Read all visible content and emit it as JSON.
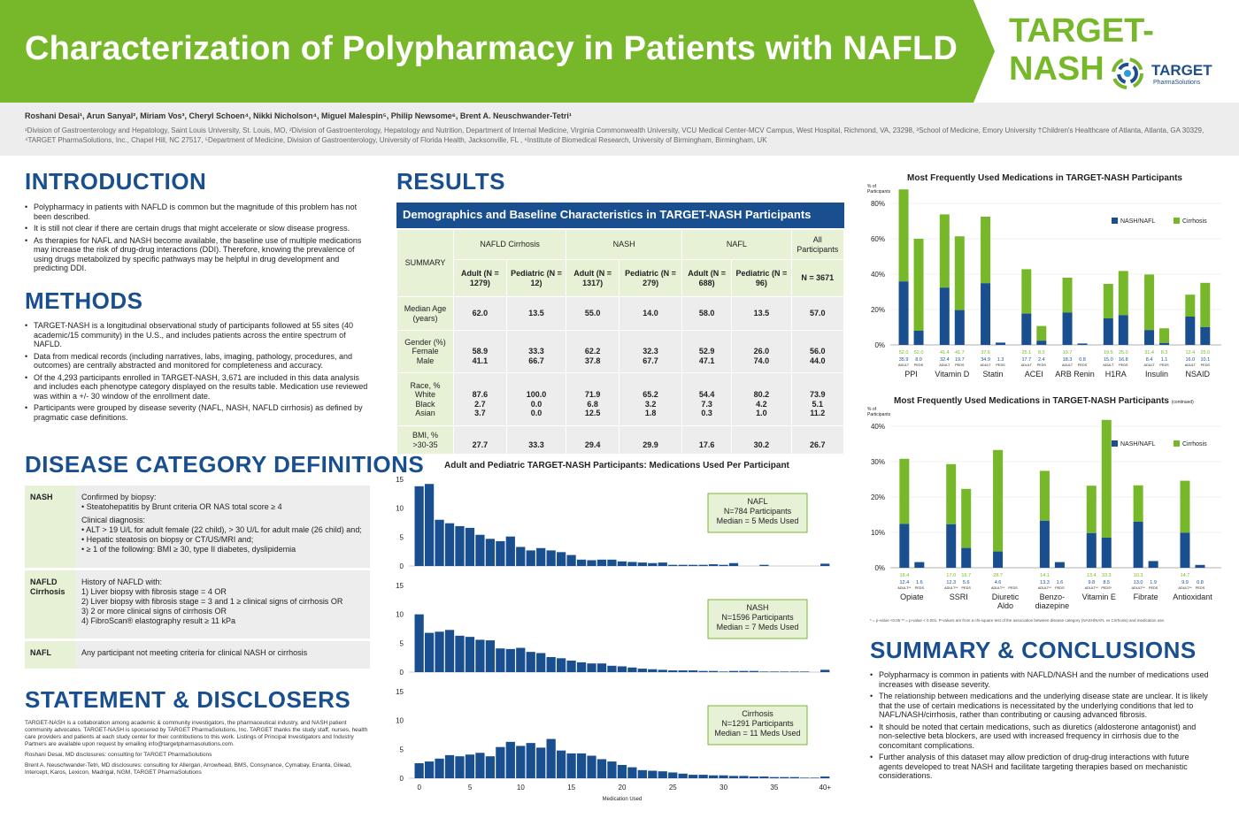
{
  "header": {
    "title": "Characterization of Polypharmacy in Patients with NAFLD",
    "brand": "TARGET-NASH",
    "logo_text": "TARGET",
    "logo_sub": "PharmaSolutions"
  },
  "authors": "Roshani Desai¹, Arun Sanyal², Miriam Vos³, Cheryl Schoen⁴, Nikki Nicholson⁴, Miguel Malespin⁵, Philip Newsome⁶, Brent A. Neuschwander-Tetri¹",
  "affiliations": "¹Division of Gastroenterology and Hepatology, Saint Louis University, St. Louis, MO, ²Division of Gastroenterology, Hepatology and Nutrition, Department of Internal Medicine, Virginia Commonwealth University, VCU Medical Center-MCV Campus, West Hospital, Richmond, VA, 23298, ³School of Medicine, Emory University †Children's Healthcare of Atlanta, Atlanta, GA 30329, ⁴TARGET PharmaSolutions, Inc., Chapel Hill, NC 27517, ⁵Department of Medicine, Division of Gastroenterology, University of Florida Health, Jacksonville, FL , ⁶Institute of Biomedical Research, University of Birmingham, Birmingham, UK",
  "intro": {
    "heading": "INTRODUCTION",
    "bullets": [
      "Polypharmacy in patients with NAFLD is common but the magnitude of this problem has not been described.",
      "It is still not clear if there are certain drugs that might accelerate or slow disease progress.",
      "As therapies for NAFL and NASH become available, the baseline use of multiple medications may increase the risk of drug-drug interactions (DDI). Therefore, knowing the prevalence of using drugs metabolized by specific pathways may be helpful in drug development and predicting DDI."
    ]
  },
  "methods": {
    "heading": "METHODS",
    "bullets": [
      "TARGET-NASH is a longitudinal observational study of participants followed at 55 sites (40 academic/15 community) in the U.S., and includes patients across the entire spectrum of NAFLD.",
      "Data from medical records (including narratives, labs, imaging, pathology, procedures, and outcomes) are centrally abstracted and monitored for completeness and accuracy.",
      "Of the 4,293 participants enrolled in TARGET-NASH, 3,671 are included in this data analysis and includes each phenotype category displayed on the results table.  Medication use reviewed was within a +/- 30 window of the enrollment date.",
      "Participants were grouped by disease severity (NAFL, NASH, NAFLD cirrhosis) as defined by pragmatic case definitions."
    ]
  },
  "definitions": {
    "heading": "DISEASE CATEGORY DEFINITIONS",
    "rows": [
      {
        "key": "NASH",
        "lines": [
          "Confirmed by biopsy:",
          "• Steatohepatitis by Brunt criteria OR NAS total score ≥ 4",
          "Clinical diagnosis:",
          "• ALT > 19 U/L for adult female (22 child), > 30 U/L for adult male (26 child) and;",
          "• Hepatic steatosis on biopsy or CT/US/MRI and;",
          "• ≥ 1 of the following: BMI ≥ 30, type II diabetes, dyslipidemia"
        ]
      },
      {
        "key": "NAFLD Cirrhosis",
        "lines": [
          "History of NAFLD with:",
          "1) Liver biopsy with fibrosis stage = 4 OR",
          "2) Liver biopsy with fibrosis stage = 3 and 1 ≥ clinical signs of cirrhosis OR",
          "3) 2 or more clinical signs of cirrhosis OR",
          "4) FibroScan® elastography result ≥ 11 kPa"
        ]
      },
      {
        "key": "NAFL",
        "lines": [
          "Any participant not meeting criteria for clinical NASH or cirrhosis"
        ]
      }
    ]
  },
  "statement": {
    "heading": "STATEMENT & DISCLOSERS",
    "paragraphs": [
      "TARGET-NASH is a collaboration among academic & community investigators, the  pharmaceutical industry, and NASH patient community advocates. TARGET-NASH is  sponsored by TARGET PharmaSolutions, Inc. TARGET thanks the study staff, nurses, health  care providers and patients at each study center for their contributions to this work. Listings of Principal Investigators and Industry Partners are available upon request by  emailing info@targetpharmasolutions.com.",
      "Roshani Desai, MD disclosures: consulting for TARGET PharmaSolutions",
      "Brent A.  Neuschwander-Tetri, MD disclosures: consulting for Allergan, Arrowhead, BMS, Consynance, Cymabay, Enanta, Gilead, Intercept, Karos, Lexicon, Madrigal, NGM, TARGET PharmaSolutions"
    ]
  },
  "results": {
    "heading": "RESULTS",
    "table_title": "Demographics and Baseline Characteristics in TARGET-NASH Participants",
    "summary_label": "SUMMARY",
    "groups": [
      "NAFLD Cirrhosis",
      "NASH",
      "NAFL",
      "All Participants"
    ],
    "subheads": [
      "Adult (N = 1279)",
      "Pediatric (N = 12)",
      "Adult (N = 1317)",
      "Pediatric (N = 279)",
      "Adult (N = 688)",
      "Pediatric (N = 96)",
      "N = 3671"
    ],
    "rows": [
      {
        "label": [
          "Median Age (years)"
        ],
        "cells": [
          [
            "62.0"
          ],
          [
            "13.5"
          ],
          [
            "55.0"
          ],
          [
            "14.0"
          ],
          [
            "58.0"
          ],
          [
            "13.5"
          ],
          [
            "57.0"
          ]
        ]
      },
      {
        "label": [
          "Gender (%)",
          "Female",
          "Male"
        ],
        "cells": [
          [
            "58.9",
            "41.1"
          ],
          [
            "33.3",
            "66.7"
          ],
          [
            "62.2",
            "37.8"
          ],
          [
            "32.3",
            "67.7"
          ],
          [
            "52.9",
            "47.1"
          ],
          [
            "26.0",
            "74.0"
          ],
          [
            "56.0",
            "44.0"
          ]
        ]
      },
      {
        "label": [
          "Race, %",
          "White",
          "Black",
          "Asian"
        ],
        "cells": [
          [
            "87.6",
            "2.7",
            "3.7"
          ],
          [
            "100.0",
            "0.0",
            "0.0"
          ],
          [
            "71.9",
            "6.8",
            "12.5"
          ],
          [
            "65.2",
            "3.2",
            "1.8"
          ],
          [
            "54.4",
            "7.3",
            "0.3"
          ],
          [
            "80.2",
            "4.2",
            "1.0"
          ],
          [
            "73.9",
            "5.1",
            "11.2"
          ]
        ]
      },
      {
        "label": [
          "BMI, %",
          ">30-35"
        ],
        "cells": [
          [
            "27.7"
          ],
          [
            "33.3"
          ],
          [
            "29.4"
          ],
          [
            "29.9"
          ],
          [
            "17.6"
          ],
          [
            "30.2"
          ],
          [
            "26.7"
          ]
        ]
      }
    ]
  },
  "chart_data": [
    {
      "type": "bar",
      "title": "Adult and Pediatric TARGET-NASH Participants:  Medications Used Per Participant",
      "xlabel": "Medication Used",
      "x_ticks": [
        "0",
        "5",
        "10",
        "15",
        "20",
        "25",
        "30",
        "35",
        "40+"
      ],
      "y_ticks": [
        0,
        5,
        10,
        15
      ],
      "ylim": [
        0,
        15
      ],
      "series": [
        {
          "name": "NAFL",
          "legend": [
            "NAFL",
            "N=784 Participants",
            "Median = 5 Meds Used"
          ],
          "values": [
            13.8,
            14.2,
            8.0,
            7.4,
            6.9,
            6.6,
            5.4,
            4.7,
            4.3,
            5.1,
            3.3,
            2.7,
            3.1,
            2.7,
            2.4,
            1.9,
            1.1,
            1.0,
            1.1,
            1.1,
            0.8,
            0.7,
            0.6,
            0.5,
            0.6,
            0.2,
            0.2,
            0.2,
            0.2,
            0.3,
            0.2,
            0.5,
            0,
            0,
            0.2,
            0,
            0,
            0,
            0,
            0,
            0.4
          ]
        },
        {
          "name": "NASH",
          "legend": [
            "NASH",
            "N=1596 Participants",
            "Median = 7 Meds Used"
          ],
          "values": [
            10.0,
            6.8,
            7.0,
            7.3,
            6.3,
            6.1,
            5.6,
            5.5,
            4.1,
            4.0,
            4.2,
            3.5,
            3.3,
            2.6,
            2.4,
            2.0,
            1.7,
            1.5,
            1.5,
            1.1,
            1.0,
            0.8,
            0.6,
            0.5,
            0.4,
            0.3,
            0.3,
            0.3,
            0.2,
            0.2,
            0.1,
            0.2,
            0.2,
            0.2,
            0.1,
            0.1,
            0.1,
            0.1,
            0.1,
            0,
            0.4
          ]
        },
        {
          "name": "Cirrhosis",
          "legend": [
            "Cirrhosis",
            "N=1291 Participants",
            "Median = 11 Meds Used"
          ],
          "values": [
            2.6,
            2.9,
            3.4,
            4.0,
            3.8,
            4.1,
            4.4,
            3.8,
            5.4,
            6.3,
            5.6,
            6.1,
            5.3,
            6.8,
            4.8,
            4.3,
            4.3,
            3.9,
            3.3,
            2.9,
            2.3,
            1.9,
            1.4,
            1.3,
            1.2,
            1.0,
            0.8,
            0.6,
            0.6,
            0.5,
            0.5,
            0.4,
            0.4,
            0.3,
            0.3,
            0.2,
            0.2,
            0.2,
            0.1,
            0.1,
            0.3
          ]
        }
      ]
    },
    {
      "type": "bar",
      "stacked": true,
      "title": "Most Frequently Used Medications in TARGET-NASH Participants",
      "ylabel": "% of Participants",
      "ylim": [
        0,
        80
      ],
      "y_ticks": [
        "0%",
        "20%",
        "40%",
        "60%",
        "80%"
      ],
      "legend": [
        "NASH/NAFL",
        "Cirrhosis"
      ],
      "legend_position": "top-right",
      "colors": {
        "NASH/NAFL": "#1a4f8f",
        "Cirrhosis": "#77b82a"
      },
      "groups": [
        {
          "name": "PPI",
          "bars": [
            {
              "adult_peds": "ADULT",
              "nash": 35.9,
              "cirr": 52.0
            },
            {
              "adult_peds": "PEDS",
              "nash": 8.0,
              "cirr": 52.0
            }
          ]
        },
        {
          "name": "Vitamin D",
          "bars": [
            {
              "adult_peds": "ADULT",
              "nash": 32.4,
              "cirr": 41.4
            },
            {
              "adult_peds": "PEDS",
              "nash": 19.7,
              "cirr": 41.7
            }
          ]
        },
        {
          "name": "Statin",
          "bars": [
            {
              "adult_peds": "ADULT",
              "nash": 34.9,
              "cirr": 37.6
            },
            {
              "adult_peds": "PEDS",
              "nash": 1.3,
              "cirr": 0
            }
          ]
        },
        {
          "name": "ACEI",
          "bars": [
            {
              "adult_peds": "ADULT",
              "nash": 17.7,
              "cirr": 25.1
            },
            {
              "adult_peds": "PEDS",
              "nash": 2.4,
              "cirr": 8.3
            }
          ]
        },
        {
          "name": "ARB Renin",
          "bars": [
            {
              "adult_peds": "ADULT",
              "nash": 18.3,
              "cirr": 19.7
            },
            {
              "adult_peds": "PEDS",
              "nash": 0.8,
              "cirr": 0
            }
          ]
        },
        {
          "name": "H1RA",
          "bars": [
            {
              "adult_peds": "ADULT",
              "nash": 15.0,
              "cirr": 19.5
            },
            {
              "adult_peds": "PEDS",
              "nash": 16.8,
              "cirr": 25.0
            }
          ]
        },
        {
          "name": "Insulin",
          "bars": [
            {
              "adult_peds": "ADULT",
              "nash": 8.4,
              "cirr": 31.4
            },
            {
              "adult_peds": "PEDS",
              "nash": 1.1,
              "cirr": 8.3
            }
          ]
        },
        {
          "name": "NSAID",
          "bars": [
            {
              "adult_peds": "ADULT",
              "nash": 16.0,
              "cirr": 12.4
            },
            {
              "adult_peds": "PEDS",
              "nash": 10.1,
              "cirr": 25.0
            }
          ]
        }
      ]
    },
    {
      "type": "bar",
      "stacked": true,
      "title": "Most Frequently Used Medications in TARGET-NASH Participants",
      "title_note": "(continued)",
      "ylabel": "% of Participants",
      "ylim": [
        0,
        40
      ],
      "y_ticks": [
        "0%",
        "10%",
        "20%",
        "30%",
        "40%"
      ],
      "legend": [
        "NASH/NAFL",
        "Cirrhosis"
      ],
      "legend_position": "top-right",
      "colors": {
        "NASH/NAFL": "#1a4f8f",
        "Cirrhosis": "#77b82a"
      },
      "groups": [
        {
          "name": "Opiate",
          "bars": [
            {
              "adult_peds": "ADULT**",
              "nash": 12.4,
              "cirr": 18.4
            },
            {
              "adult_peds": "PEDS",
              "nash": 1.6,
              "cirr": 0
            }
          ]
        },
        {
          "name": "SSRI",
          "bars": [
            {
              "adult_peds": "ADULT**",
              "nash": 12.3,
              "cirr": 17.0
            },
            {
              "adult_peds": "PEDS",
              "nash": 5.6,
              "cirr": 16.7
            }
          ]
        },
        {
          "name": "Diuretic Aldo",
          "bars": [
            {
              "adult_peds": "ADULT**",
              "nash": 4.6,
              "cirr": 28.7
            },
            {
              "adult_peds": "PEDS",
              "nash": 0,
              "cirr": 0
            }
          ]
        },
        {
          "name": "Benzo-diazepine",
          "bars": [
            {
              "adult_peds": "ADULT**",
              "nash": 13.3,
              "cirr": 14.1
            },
            {
              "adult_peds": "PEDS",
              "nash": 1.6,
              "cirr": 0
            }
          ]
        },
        {
          "name": "Vitamin E",
          "bars": [
            {
              "adult_peds": "ADULT**",
              "nash": 9.8,
              "cirr": 13.4
            },
            {
              "adult_peds": "PEDS*",
              "nash": 8.5,
              "cirr": 33.3
            }
          ]
        },
        {
          "name": "Fibrate",
          "bars": [
            {
              "adult_peds": "ADULT**",
              "nash": 13.0,
              "cirr": 10.3
            },
            {
              "adult_peds": "PEDS",
              "nash": 1.9,
              "cirr": 0
            }
          ]
        },
        {
          "name": "Antioxidant",
          "bars": [
            {
              "adult_peds": "ADULT**",
              "nash": 9.9,
              "cirr": 14.7
            },
            {
              "adult_peds": "PEDS",
              "nash": 0.8,
              "cirr": 0
            }
          ]
        }
      ],
      "footnote": "* = p-value <0.05  ** = p-value < 0.001. P-values are from a chi-square test of the association between disease category (NASH/NAFL vs Cirrhosis) and medication use."
    }
  ],
  "summary": {
    "heading": "SUMMARY & CONCLUSIONS",
    "bullets": [
      "Polypharmacy is common in patients with NAFLD/NASH and the number of medications used increases with disease severity.",
      "The relationship between medications and the underlying disease state are unclear. It is likely that the use of certain medications is necessitated by the underlying conditions that led to NAFL/NASH/cirrhosis, rather than contributing or causing advanced fibrosis.",
      "It should be noted that certain medications, such as diuretics (aldosterone antagonist) and non-selective beta blockers, are used with increased frequency in cirrhosis due to the concomitant complications.",
      "Further analysis of this dataset may allow prediction of drug-drug interactions with future agents developed to treat NASH and facilitate targeting therapies based on mechanistic considerations."
    ]
  }
}
